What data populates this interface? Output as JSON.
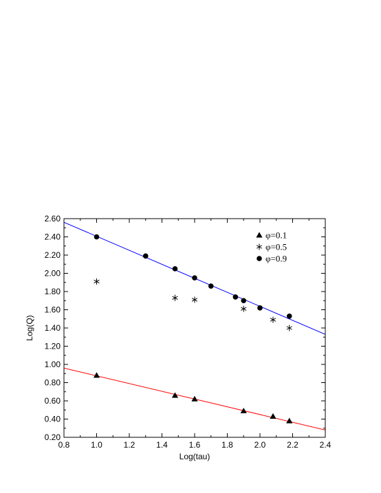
{
  "chart_data": {
    "type": "scatter",
    "xlabel": "Log(tau)",
    "ylabel": "Log(Q)",
    "xlim": [
      0.8,
      2.4
    ],
    "ylim": [
      0.2,
      2.6
    ],
    "x_ticks": [
      0.8,
      1.0,
      1.2,
      1.4,
      1.6,
      1.8,
      2.0,
      2.2,
      2.4
    ],
    "y_ticks": [
      0.2,
      0.4,
      0.6,
      0.8,
      1.0,
      1.2,
      1.4,
      1.6,
      1.8,
      2.0,
      2.2,
      2.4,
      2.6
    ],
    "x_tick_labels": [
      "0.8",
      "1.0",
      "1.2",
      "1.4",
      "1.6",
      "1.8",
      "2.0",
      "2.2",
      "2.4"
    ],
    "y_tick_labels": [
      "0.20",
      "0.40",
      "0.60",
      "0.80",
      "1.00",
      "1.20",
      "1.40",
      "1.60",
      "1.80",
      "2.00",
      "2.20",
      "2.40",
      "2.60"
    ],
    "legend_position": "top-right",
    "grid": false,
    "series": [
      {
        "name": "φ=0.1",
        "marker": "triangle",
        "color": "#000000",
        "points": [
          [
            1.0,
            0.88
          ],
          [
            1.48,
            0.66
          ],
          [
            1.6,
            0.62
          ],
          [
            1.9,
            0.49
          ],
          [
            2.08,
            0.43
          ],
          [
            2.18,
            0.38
          ]
        ]
      },
      {
        "name": "φ=0.5",
        "marker": "asterisk",
        "color": "#000000",
        "points": [
          [
            1.0,
            1.91
          ],
          [
            1.48,
            1.73
          ],
          [
            1.6,
            1.71
          ],
          [
            1.9,
            1.61
          ],
          [
            2.08,
            1.49
          ],
          [
            2.18,
            1.4
          ]
        ]
      },
      {
        "name": "φ=0.9",
        "marker": "circle",
        "color": "#000000",
        "points": [
          [
            1.0,
            2.4
          ],
          [
            1.3,
            2.19
          ],
          [
            1.48,
            2.05
          ],
          [
            1.6,
            1.95
          ],
          [
            1.7,
            1.86
          ],
          [
            1.85,
            1.74
          ],
          [
            1.9,
            1.7
          ],
          [
            2.0,
            1.62
          ],
          [
            2.18,
            1.53
          ]
        ]
      }
    ],
    "fit_lines": [
      {
        "color": "#ff0000",
        "x": [
          0.8,
          2.4
        ],
        "y": [
          0.96,
          0.28
        ]
      },
      {
        "color": "#0000ff",
        "x": [
          0.8,
          2.4
        ],
        "y": [
          2.56,
          1.33
        ]
      }
    ]
  }
}
